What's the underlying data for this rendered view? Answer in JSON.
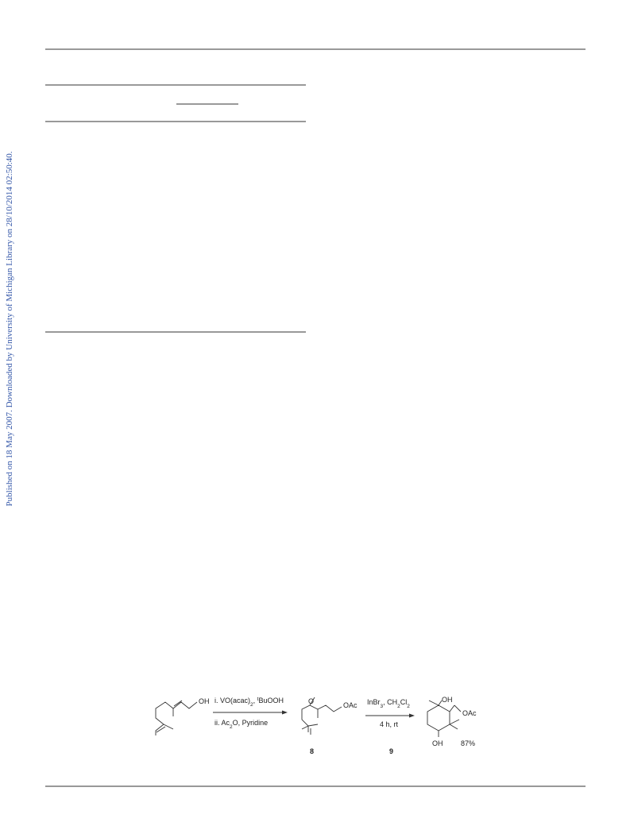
{
  "sidebar": {
    "text": "Published on 18 May 2007. Downloaded by University of Michigan Library on 28/10/2014 02:50:40."
  },
  "scheme": {
    "start_oh": "OH",
    "step1_reagent": [
      "i. VO(acac)",
      "2",
      ", ",
      "t",
      "BuOOH"
    ],
    "step1_second": [
      "ii. Ac",
      "2",
      "O, Pyridine"
    ],
    "epoxide_o": "O",
    "compound8_oac": "OAc",
    "compound8_label": "8",
    "step2_reagent": [
      "InBr",
      "3",
      ", CH",
      "2",
      "Cl",
      "2"
    ],
    "step2_conditions": "4 h, rt",
    "step2_label": "9",
    "product_oh_top": "OH",
    "product_oac": "OAc",
    "product_oh_bottom": "OH",
    "yield": "87%"
  }
}
